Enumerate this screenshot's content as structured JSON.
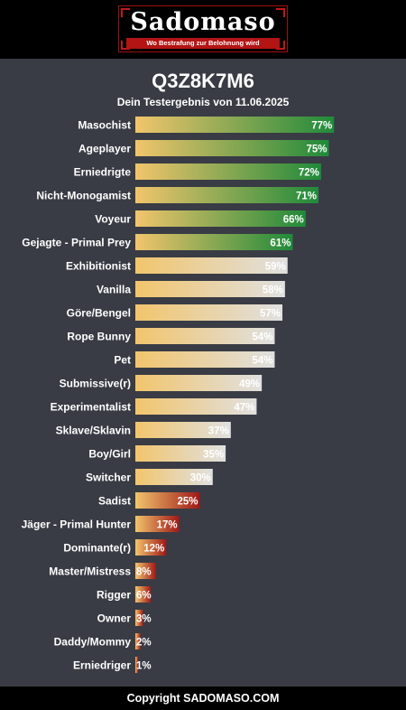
{
  "header": {
    "logo_text": "Sadomaso",
    "tagline": "Wo Bestrafung zur Belohnung wird"
  },
  "title": "Q3Z8K7M6",
  "subtitle": "Dein Testergebnis von 11.06.2025",
  "footer": "Copyright SADOMASO.COM",
  "colors": {
    "background": "#393c44",
    "bar_start": "#f2c56c",
    "high_end": "#1f8a3a",
    "mid_end": "#e0e0e0",
    "low_end": "#a01818"
  },
  "chart_data": {
    "type": "bar",
    "orientation": "horizontal",
    "categories": [
      "Masochist",
      "Ageplayer",
      "Erniedrigte",
      "Nicht-Monogamist",
      "Voyeur",
      "Gejagte - Primal Prey",
      "Exhibitionist",
      "Vanilla",
      "Göre/Bengel",
      "Rope Bunny",
      "Pet",
      "Submissive(r)",
      "Experimentalist",
      "Sklave/Sklavin",
      "Boy/Girl",
      "Switcher",
      "Sadist",
      "Jäger - Primal Hunter",
      "Dominante(r)",
      "Master/Mistress",
      "Rigger",
      "Owner",
      "Daddy/Mommy",
      "Erniedriger"
    ],
    "values": [
      77,
      75,
      72,
      71,
      66,
      61,
      59,
      58,
      57,
      54,
      54,
      49,
      47,
      37,
      35,
      30,
      25,
      17,
      12,
      8,
      6,
      3,
      2,
      1
    ],
    "value_labels": [
      "77%",
      "75%",
      "72%",
      "71%",
      "66%",
      "61%",
      "59%",
      "58%",
      "57%",
      "54%",
      "54%",
      "49%",
      "47%",
      "37%",
      "35%",
      "30%",
      "25%",
      "17%",
      "12%",
      "8%",
      "6%",
      "3%",
      "2%",
      "1%"
    ],
    "xlim": [
      0,
      100
    ],
    "grid": false,
    "legend": "none"
  }
}
